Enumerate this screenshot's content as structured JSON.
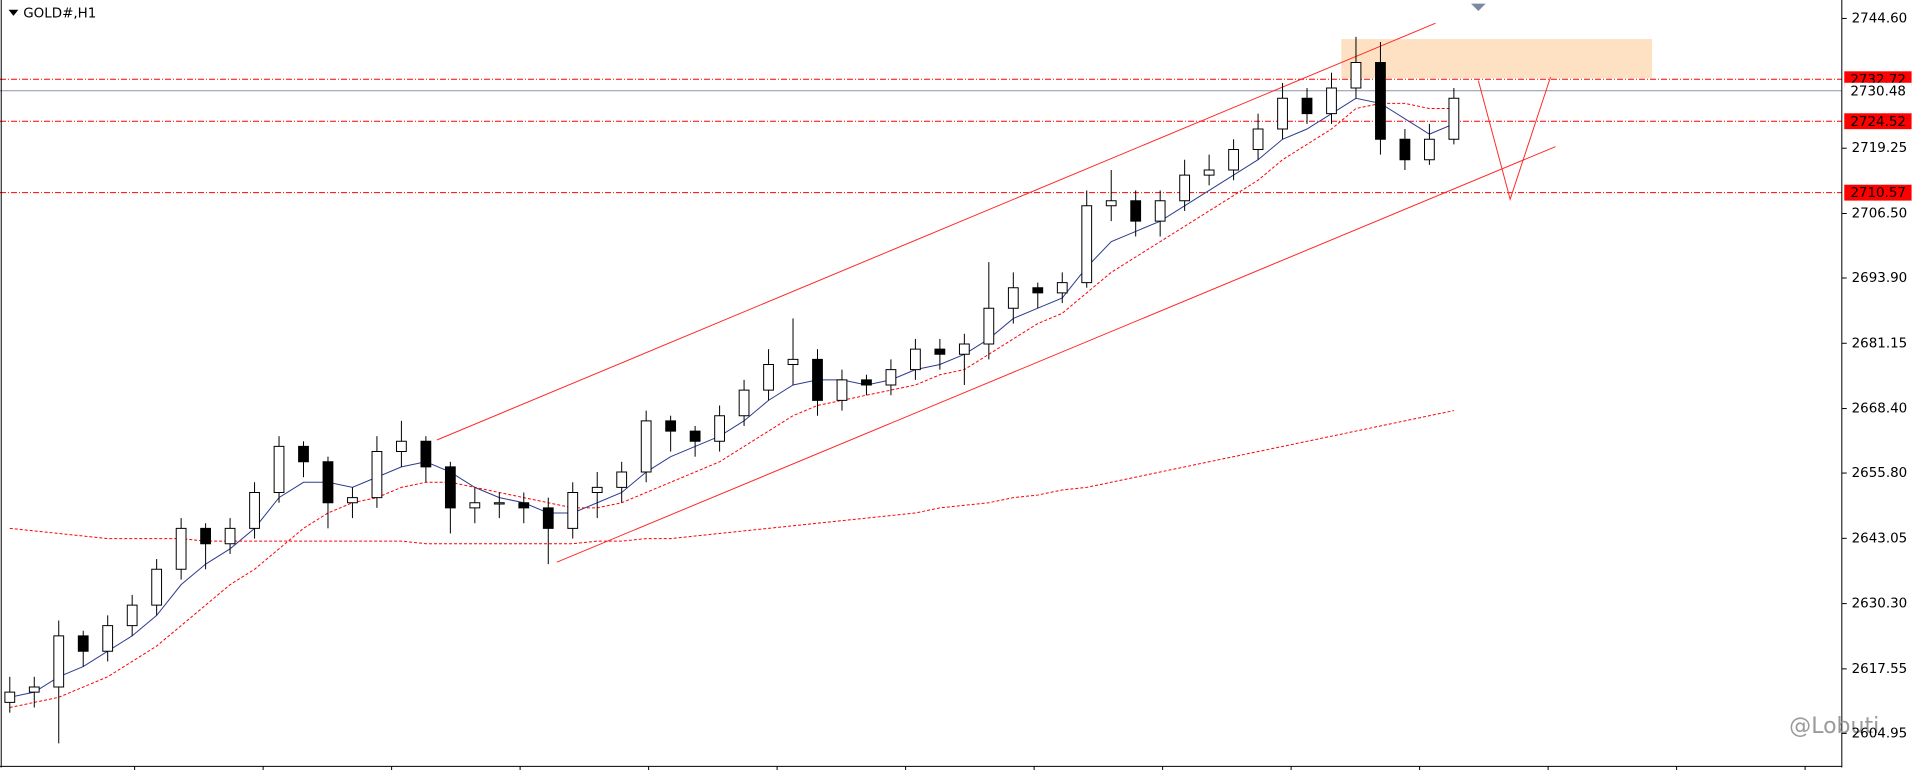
{
  "chart_data": {
    "type": "candlestick",
    "title": "GOLD#,H1",
    "watermark": "@Lobuti",
    "open": [
      2611,
      2613,
      2614,
      2624,
      2621,
      2626,
      2630,
      2637,
      2645,
      2642,
      2645,
      2652,
      2661,
      2658,
      2650,
      2651,
      2660,
      2662,
      2657,
      2649,
      2650,
      2650,
      2649,
      2645,
      2652,
      2653,
      2656,
      2666,
      2664,
      2662,
      2667,
      2672,
      2677,
      2678,
      2670,
      2674,
      2673,
      2676,
      2680,
      2679,
      2681,
      2688,
      2692,
      2691,
      2693,
      2708,
      2709,
      2705,
      2709,
      2714,
      2715,
      2719,
      2723,
      2729,
      2726,
      2731,
      2736,
      2721,
      2717,
      2721
    ],
    "high": [
      2616,
      2616,
      2627,
      2625,
      2628,
      2632,
      2639,
      2647,
      2646,
      2647,
      2654,
      2663,
      2662,
      2659,
      2653,
      2663,
      2666,
      2663,
      2658,
      2653,
      2652,
      2652,
      2651,
      2654,
      2656,
      2658,
      2668,
      2667,
      2665,
      2669,
      2674,
      2680,
      2686,
      2680,
      2676,
      2675,
      2678,
      2682,
      2682,
      2683,
      2697,
      2695,
      2693,
      2695,
      2711,
      2715,
      2711,
      2711,
      2717,
      2718,
      2721,
      2726,
      2732,
      2731,
      2734,
      2741,
      2740,
      2723,
      2724,
      2731
    ],
    "low": [
      2609,
      2610,
      2603,
      2618,
      2619,
      2624,
      2628,
      2635,
      2637,
      2640,
      2643,
      2650,
      2655,
      2645,
      2647,
      2649,
      2657,
      2654,
      2644,
      2646,
      2647,
      2646,
      2638,
      2643,
      2647,
      2650,
      2654,
      2660,
      2659,
      2660,
      2665,
      2670,
      2673,
      2667,
      2668,
      2671,
      2671,
      2674,
      2676,
      2673,
      2678,
      2685,
      2688,
      2689,
      2692,
      2705,
      2702,
      2702,
      2707,
      2712,
      2713,
      2717,
      2721,
      2724,
      2724,
      2729,
      2718,
      2715,
      2716,
      2720
    ],
    "close": [
      2613,
      2614,
      2624,
      2621,
      2626,
      2630,
      2637,
      2645,
      2642,
      2645,
      2652,
      2661,
      2658,
      2650,
      2651,
      2660,
      2662,
      2657,
      2649,
      2650,
      2650,
      2649,
      2645,
      2652,
      2653,
      2656,
      2666,
      2664,
      2662,
      2667,
      2672,
      2677,
      2678,
      2670,
      2674,
      2673,
      2676,
      2680,
      2679,
      2681,
      2688,
      2692,
      2691,
      2693,
      2708,
      2709,
      2705,
      2709,
      2714,
      2715,
      2719,
      2723,
      2729,
      2726,
      2731,
      2736,
      2721,
      2717,
      2721,
      2729
    ],
    "lines": [
      {
        "color": "#2c3b8f",
        "dashed": false,
        "values": [
          2612,
          2613,
          2616,
          2618,
          2621,
          2624,
          2628,
          2634,
          2638,
          2641,
          2645,
          2651,
          2654,
          2654,
          2653,
          2655,
          2657,
          2658,
          2656,
          2653,
          2651,
          2650,
          2648,
          2648,
          2650,
          2652,
          2656,
          2659,
          2661,
          2663,
          2666,
          2670,
          2673,
          2674,
          2674,
          2673,
          2674,
          2676,
          2677,
          2679,
          2682,
          2686,
          2688,
          2690,
          2696,
          2701,
          2703,
          2705,
          2708,
          2711,
          2714,
          2717,
          2721,
          2723,
          2726,
          2729,
          2728,
          2725,
          2722,
          2724
        ]
      },
      {
        "color": "#ff0000",
        "dashed": true,
        "values": [
          2610,
          2611,
          2612,
          2614,
          2616,
          2619,
          2622,
          2626,
          2630,
          2634,
          2637,
          2641,
          2645,
          2648,
          2650,
          2651,
          2653,
          2654,
          2654,
          2653,
          2652,
          2651,
          2650,
          2649,
          2649,
          2650,
          2652,
          2654,
          2656,
          2658,
          2661,
          2664,
          2667,
          2669,
          2670,
          2671,
          2672,
          2673,
          2675,
          2676,
          2679,
          2682,
          2685,
          2687,
          2691,
          2695,
          2698,
          2701,
          2704,
          2707,
          2710,
          2713,
          2717,
          2720,
          2723,
          2727,
          2728,
          2728,
          2727,
          2727
        ]
      },
      {
        "color": "#ff0000",
        "dashed": true,
        "values": [
          2645,
          2644.5,
          2644,
          2643.5,
          2643,
          2643,
          2643,
          2643,
          2642.5,
          2642.5,
          2642.5,
          2642.5,
          2642.5,
          2642.5,
          2642.5,
          2642.5,
          2642.5,
          2642,
          2642,
          2642,
          2642,
          2642,
          2642,
          2642,
          2642.5,
          2642.5,
          2643,
          2643,
          2643.5,
          2644,
          2644.5,
          2645,
          2645.5,
          2646,
          2646.5,
          2647,
          2647.5,
          2648,
          2649,
          2649.5,
          2650,
          2651,
          2651.5,
          2652.5,
          2653,
          2654,
          2655,
          2656,
          2657,
          2658,
          2659,
          2660,
          2661,
          2662,
          2663,
          2664,
          2665,
          2666,
          2667,
          2668
        ]
      }
    ],
    "levels": [
      {
        "value": 2732.72,
        "color": "#ff0000"
      },
      {
        "value": 2724.52,
        "color": "#ff0000"
      },
      {
        "value": 2710.57,
        "color": "#ff0000"
      },
      {
        "value": 2730.48,
        "color": "#8a96a8"
      }
    ],
    "ylim": [
      2597.8,
      2748.2
    ],
    "yticks": [
      {
        "value": 2744.6,
        "label": "2744.60"
      },
      2719.25,
      {
        "value": 2706.5,
        "label": "2706.50"
      },
      {
        "value": 2693.9,
        "label": "2693.90"
      },
      2681.15,
      {
        "value": 2668.4,
        "label": "2668.40"
      },
      {
        "value": 2655.8,
        "label": "2655.80"
      },
      2643.05,
      {
        "value": 2630.3,
        "label": "2630.30"
      },
      2617.55,
      2604.95
    ]
  }
}
